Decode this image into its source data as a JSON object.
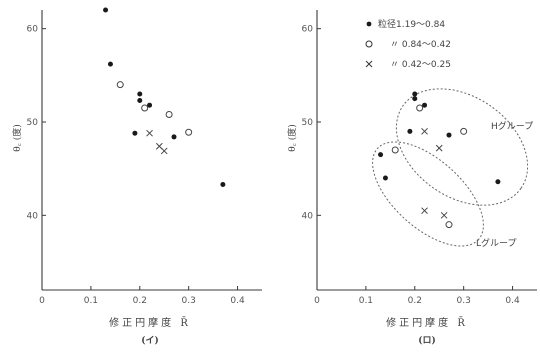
{
  "chart_data": [
    {
      "type": "scatter",
      "panel_label": "(イ)",
      "xlabel": "修正円摩度 R̄",
      "ylabel": "θ꜀ (度)",
      "xlim": [
        0,
        0.45
      ],
      "ylim": [
        32,
        62
      ],
      "xticks": [
        "0",
        "0.1",
        "0.2",
        "0.3",
        "0.4"
      ],
      "yticks": [
        "40",
        "50",
        "60"
      ],
      "series": [
        {
          "marker": "filled-circle",
          "points": [
            [
              0.13,
              62
            ],
            [
              0.14,
              56.2
            ],
            [
              0.2,
              53
            ],
            [
              0.2,
              52.3
            ],
            [
              0.22,
              51.8
            ],
            [
              0.19,
              48.8
            ],
            [
              0.27,
              48.4
            ],
            [
              0.37,
              43.3
            ]
          ]
        },
        {
          "marker": "open-circle",
          "points": [
            [
              0.16,
              54
            ],
            [
              0.21,
              51.5
            ],
            [
              0.26,
              50.8
            ],
            [
              0.3,
              48.9
            ]
          ]
        },
        {
          "marker": "cross",
          "points": [
            [
              0.22,
              48.8
            ],
            [
              0.24,
              47.4
            ],
            [
              0.25,
              46.9
            ]
          ]
        }
      ]
    },
    {
      "type": "scatter",
      "panel_label": "(ロ)",
      "xlabel": "修正円摩度 R̄",
      "ylabel": "θ꜀ (度)",
      "xlim": [
        0,
        0.45
      ],
      "ylim": [
        32,
        62
      ],
      "xticks": [
        "0",
        "0.1",
        "0.2",
        "0.3",
        "0.4"
      ],
      "yticks": [
        "40",
        "50",
        "60"
      ],
      "legend": [
        "粒径1.19～0.84",
        "〃 0.84～0.42",
        "〃 0.42～0.25"
      ],
      "groups": [
        "Hグループ",
        "Lグループ"
      ],
      "series": [
        {
          "marker": "filled-circle",
          "points": [
            [
              0.2,
              53
            ],
            [
              0.2,
              52.5
            ],
            [
              0.22,
              51.8
            ],
            [
              0.19,
              49
            ],
            [
              0.27,
              48.6
            ],
            [
              0.37,
              43.6
            ],
            [
              0.13,
              46.5
            ],
            [
              0.14,
              44
            ]
          ]
        },
        {
          "marker": "open-circle",
          "points": [
            [
              0.21,
              51.5
            ],
            [
              0.3,
              49
            ],
            [
              0.16,
              47
            ],
            [
              0.27,
              39
            ]
          ]
        },
        {
          "marker": "cross",
          "points": [
            [
              0.22,
              49
            ],
            [
              0.25,
              47.2
            ],
            [
              0.22,
              40.5
            ],
            [
              0.26,
              40
            ]
          ]
        }
      ]
    }
  ]
}
